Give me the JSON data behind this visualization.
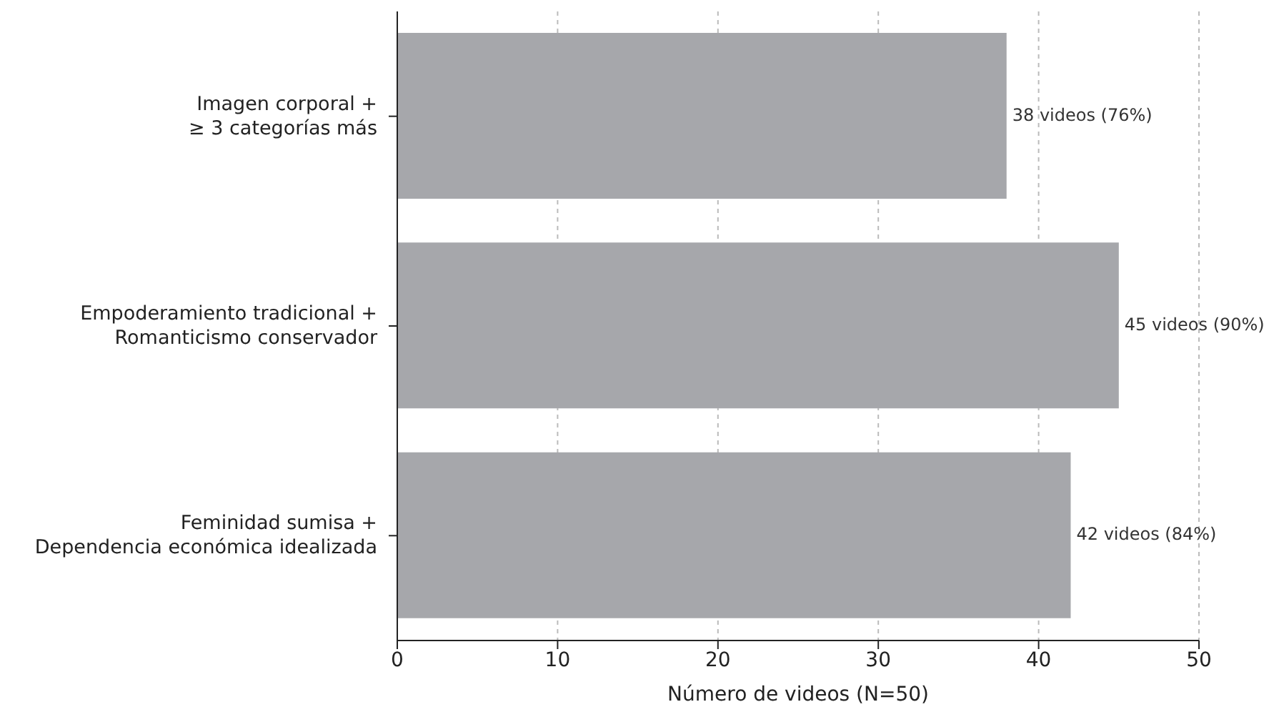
{
  "chart_data": {
    "type": "bar",
    "orientation": "horizontal",
    "categories": [
      "Imagen corporal +\n≥ 3 categorías más",
      "Empoderamiento tradicional +\nRomanticismo conservador",
      "Feminidad sumisa +\nDependencia económica idealizada"
    ],
    "values": [
      38,
      45,
      42
    ],
    "value_labels": [
      "38 videos (76%)",
      "45 videos (90%)",
      "42 videos (84%)"
    ],
    "color": "#a6a7ab",
    "xlabel": "Número de videos (N=50)",
    "xlim": [
      0,
      50
    ],
    "xticks": [
      0,
      10,
      20,
      30,
      40,
      50
    ],
    "grid": "x"
  }
}
